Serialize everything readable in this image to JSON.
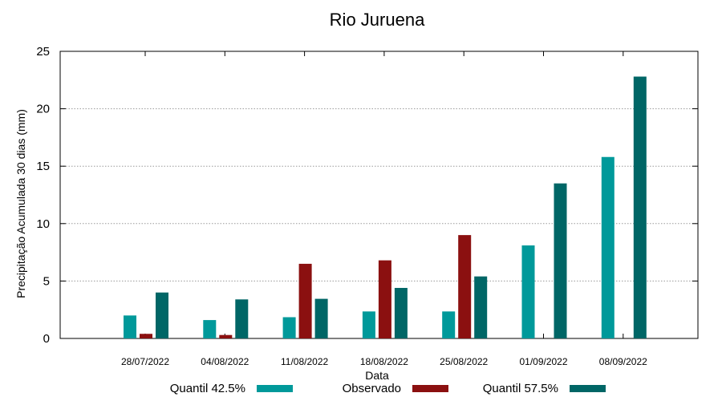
{
  "chart_data": {
    "type": "bar",
    "title": "Rio Juruena",
    "xlabel": "Data",
    "ylabel": "Precipitação Acumulada 30 dias (mm)",
    "ylim": [
      0,
      25
    ],
    "yticks": [
      0,
      5,
      10,
      15,
      20,
      25
    ],
    "grid": true,
    "legend_position": "bottom",
    "categories": [
      "28/07/2022",
      "04/08/2022",
      "11/08/2022",
      "18/08/2022",
      "25/08/2022",
      "01/09/2022",
      "08/09/2022"
    ],
    "series": [
      {
        "name": "Quantil 42.5%",
        "color": "#00999a",
        "values": [
          2.0,
          1.6,
          1.85,
          2.35,
          2.35,
          8.1,
          15.8
        ]
      },
      {
        "name": "Observado",
        "color": "#8b1010",
        "values": [
          0.4,
          0.3,
          6.5,
          6.8,
          9.0,
          null,
          null
        ]
      },
      {
        "name": "Quantil 57.5%",
        "color": "#006666",
        "values": [
          4.0,
          3.4,
          3.45,
          4.4,
          5.4,
          13.5,
          22.8
        ]
      }
    ]
  }
}
